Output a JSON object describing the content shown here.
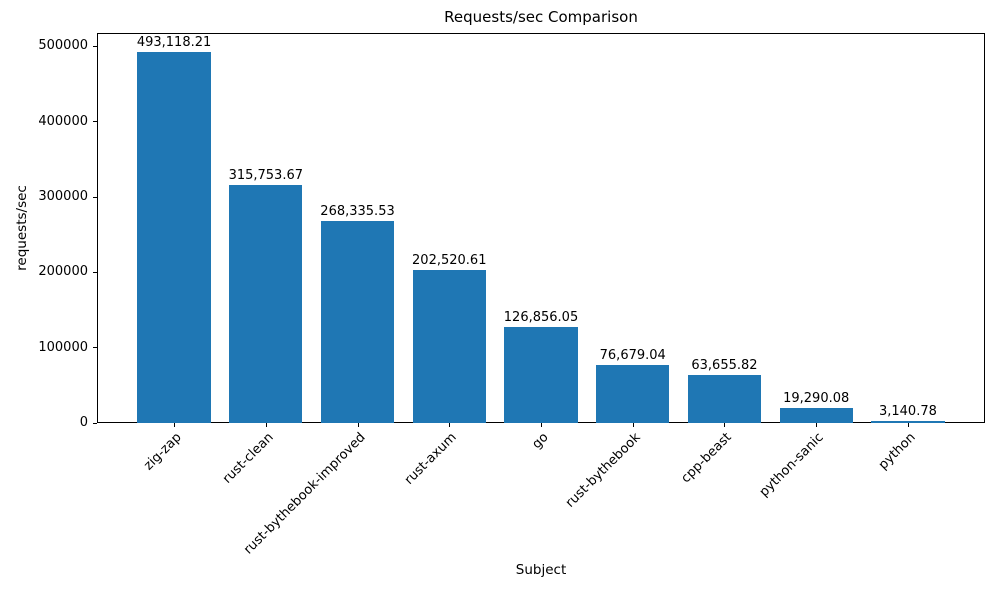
{
  "chart_data": {
    "type": "bar",
    "title": "Requests/sec Comparison",
    "xlabel": "Subject",
    "ylabel": "requests/sec",
    "categories": [
      "zig-zap",
      "rust-clean",
      "rust-bythebook-improved",
      "rust-axum",
      "go",
      "rust-bythebook",
      "cpp-beast",
      "python-sanic",
      "python"
    ],
    "values": [
      493118.21,
      315753.67,
      268335.53,
      202520.61,
      126856.05,
      76679.04,
      63655.82,
      19290.08,
      3140.78
    ],
    "value_labels": [
      "493,118.21",
      "315,753.67",
      "268,335.53",
      "202,520.61",
      "126,856.05",
      "76,679.04",
      "63,655.82",
      "19,290.08",
      "3,140.78"
    ],
    "yticks": [
      0,
      100000,
      200000,
      300000,
      400000,
      500000
    ],
    "ylim": [
      0,
      517774
    ],
    "x_tick_rotation": 45,
    "bar_color": "#1f77b4",
    "axis_color": "#000000",
    "background": "#ffffff",
    "grid": false,
    "legend": null
  }
}
